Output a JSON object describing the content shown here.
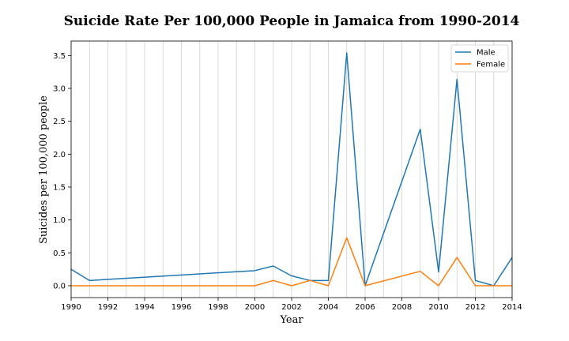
{
  "chart_data": {
    "type": "line",
    "title": "Suicide Rate Per 100,000 People in Jamaica from 1990-2014",
    "xlabel": "Year",
    "ylabel": "Suicides per 100,000 people",
    "xlim": [
      1990,
      2014
    ],
    "ylim": [
      -0.18,
      3.72
    ],
    "xticks": [
      1990,
      1992,
      1994,
      1996,
      1998,
      2000,
      2002,
      2004,
      2006,
      2008,
      2010,
      2012,
      2014
    ],
    "yticks": [
      0.0,
      0.5,
      1.0,
      1.5,
      2.0,
      2.5,
      3.0,
      3.5
    ],
    "ytick_labels": [
      "0.0",
      "0.5",
      "1.0",
      "1.5",
      "2.0",
      "2.5",
      "3.0",
      "3.5"
    ],
    "grid": "vertical lines at every year",
    "legend_position": "top-right",
    "series": [
      {
        "name": "Male",
        "color": "#1f77b4",
        "x": [
          1990,
          1991,
          2000,
          2001,
          2002,
          2003,
          2004,
          2005,
          2006,
          2009,
          2010,
          2011,
          2012,
          2013,
          2014
        ],
        "y": [
          0.25,
          0.08,
          0.23,
          0.3,
          0.15,
          0.08,
          0.08,
          3.54,
          0.0,
          2.38,
          0.21,
          3.14,
          0.08,
          0.0,
          0.43
        ]
      },
      {
        "name": "Female",
        "color": "#ff7f0e",
        "x": [
          1990,
          2000,
          2001,
          2002,
          2003,
          2004,
          2005,
          2006,
          2009,
          2010,
          2011,
          2012,
          2013,
          2014
        ],
        "y": [
          0.0,
          0.0,
          0.08,
          0.0,
          0.08,
          0.0,
          0.73,
          0.0,
          0.22,
          0.0,
          0.43,
          0.0,
          0.0,
          0.0
        ]
      }
    ]
  }
}
